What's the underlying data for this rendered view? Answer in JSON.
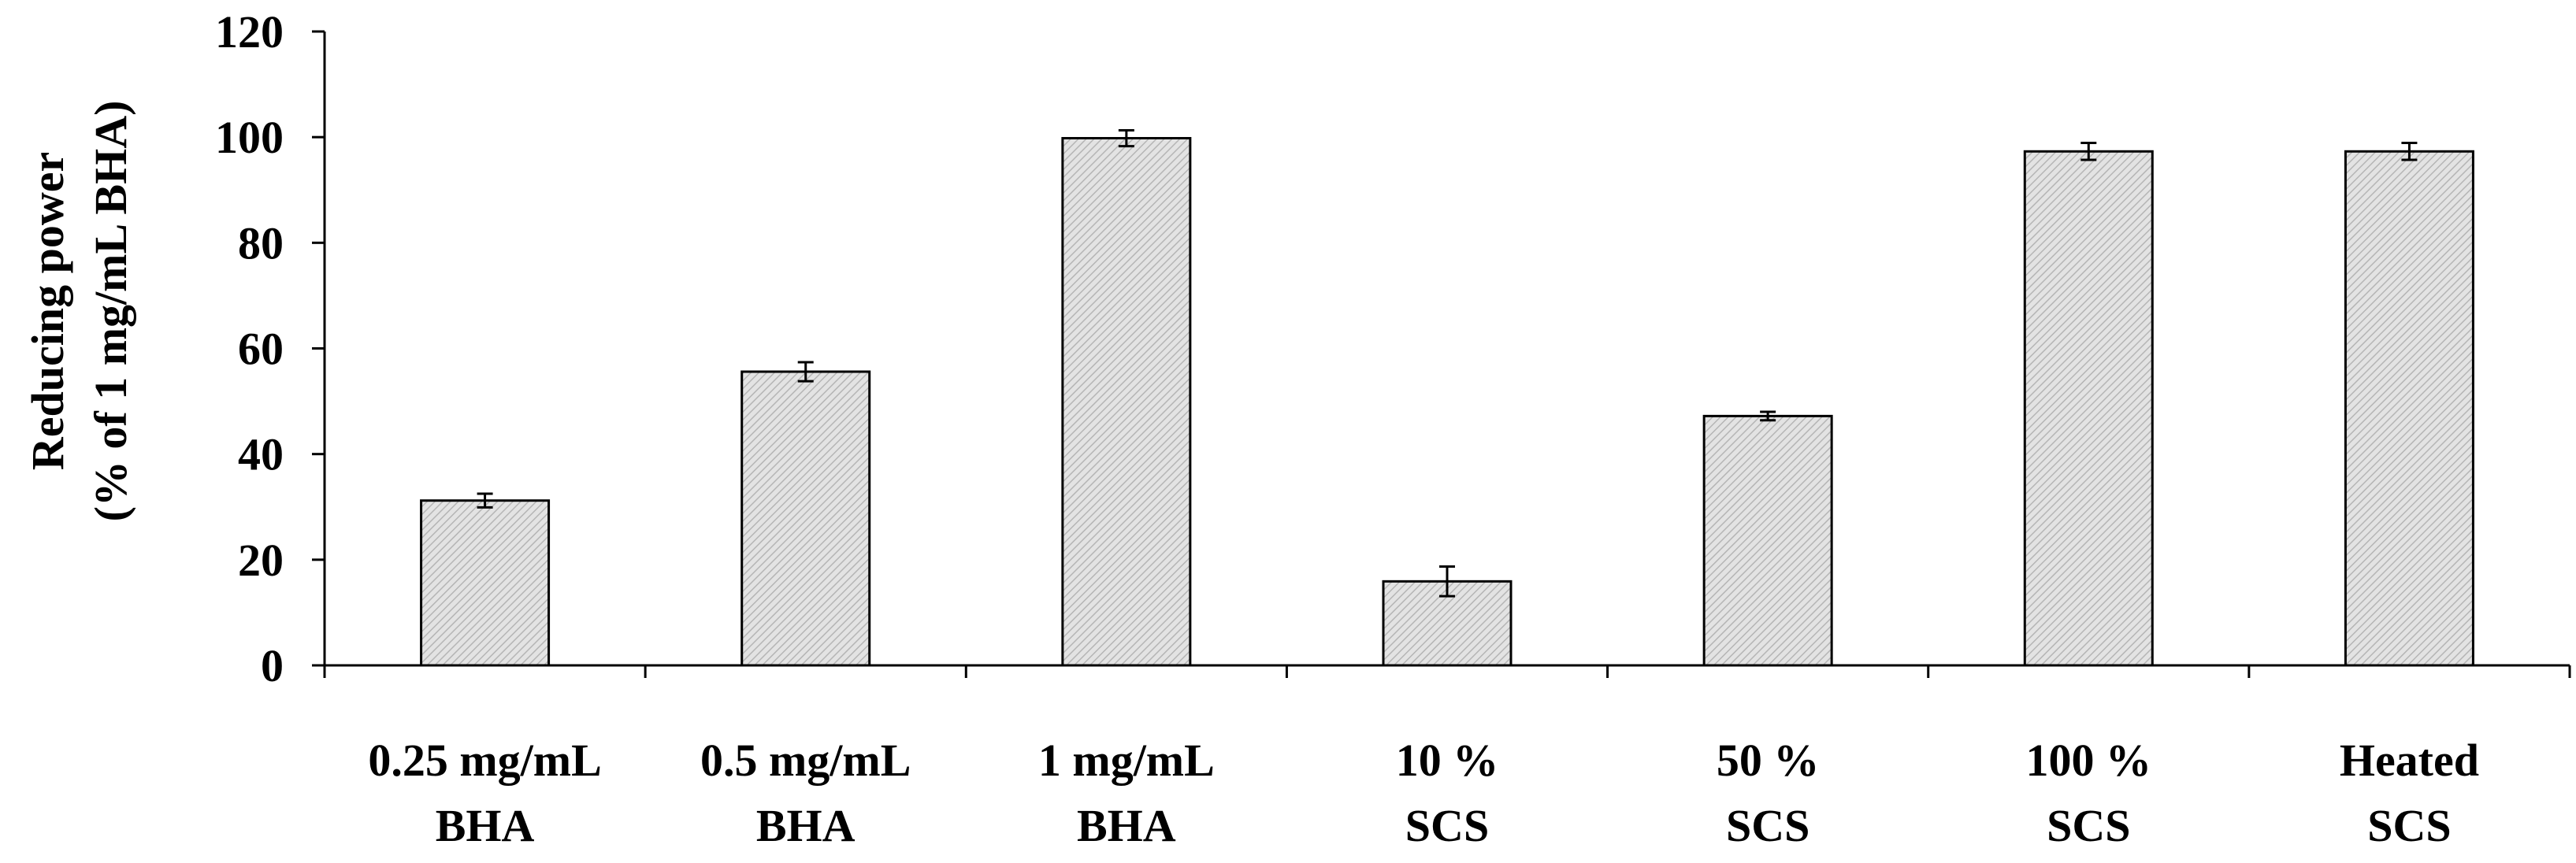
{
  "chart_data": {
    "type": "bar",
    "title": "",
    "xlabel": "",
    "ylabel": [
      "Reducing power",
      "(% of 1 mg/mL BHA)"
    ],
    "ylim": [
      0,
      120
    ],
    "yticks": [
      0,
      20,
      40,
      60,
      80,
      100,
      120
    ],
    "grid": false,
    "legend": "none",
    "categories": [
      [
        "0.25 mg/mL",
        "BHA"
      ],
      [
        "0.5 mg/mL",
        "BHA"
      ],
      [
        "1 mg/mL",
        "BHA"
      ],
      [
        "10 %",
        "SCS"
      ],
      [
        "50 %",
        "SCS"
      ],
      [
        "100 %",
        "SCS"
      ],
      [
        "Heated",
        "SCS"
      ]
    ],
    "series": [
      {
        "name": "Reducing power",
        "values": [
          31.2,
          55.6,
          99.8,
          15.9,
          47.2,
          97.3,
          97.3
        ],
        "errors": [
          1.3,
          1.8,
          1.5,
          2.8,
          0.8,
          1.6,
          1.6
        ]
      }
    ],
    "colors": {
      "bar_fill": "#e3e3e3",
      "bar_hatch": "#b5b5b5",
      "axis": "#000000"
    }
  }
}
